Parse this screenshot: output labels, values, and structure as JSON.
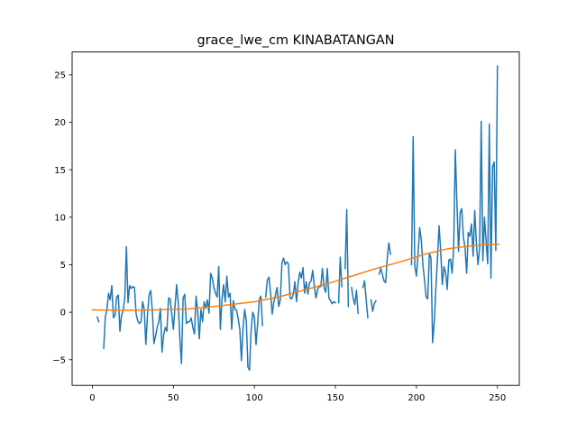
{
  "chart_data": {
    "type": "line",
    "title": "grace_lwe_cm KINABATANGAN",
    "xlabel": "",
    "ylabel": "",
    "xlim": [
      -12.5,
      263.5
    ],
    "ylim": [
      -7.7,
      27.4
    ],
    "x_ticks": [
      0,
      50,
      100,
      150,
      200,
      250
    ],
    "y_ticks": [
      -5,
      0,
      5,
      10,
      15,
      20,
      25
    ],
    "grid": false,
    "legend": "none",
    "series": [
      {
        "color": "#1f77b4",
        "points": [
          [
            3,
            -0.5
          ],
          [
            4,
            -1.0
          ],
          null,
          [
            7,
            -3.8
          ],
          [
            8,
            -0.5
          ],
          [
            9,
            0.3
          ],
          [
            10,
            2.0
          ],
          [
            11,
            1.3
          ],
          [
            12,
            2.8
          ],
          [
            13,
            -0.6
          ],
          [
            14,
            -0.3
          ],
          [
            15,
            1.6
          ],
          [
            16,
            1.8
          ],
          [
            17,
            -2.0
          ],
          [
            18,
            -0.3
          ],
          [
            19,
            0.2
          ],
          [
            20,
            1.5
          ],
          [
            21,
            6.9
          ],
          [
            22,
            1.0
          ],
          [
            23,
            2.8
          ],
          [
            24,
            2.5
          ],
          [
            25,
            2.7
          ],
          [
            26,
            2.6
          ],
          [
            27,
            -0.2
          ],
          [
            28,
            -0.9
          ],
          [
            29,
            -1.2
          ],
          [
            30,
            -1.0
          ],
          [
            31,
            1.1
          ],
          [
            32,
            0.3
          ],
          [
            33,
            -3.4
          ],
          [
            34,
            -0.3
          ],
          [
            35,
            1.8
          ],
          [
            36,
            2.3
          ],
          [
            37,
            0.2
          ],
          [
            38,
            -3.3
          ],
          [
            39,
            -2.5
          ],
          [
            40,
            -1.6
          ],
          [
            41,
            -1.0
          ],
          [
            42,
            0.4
          ],
          [
            43,
            -4.2
          ],
          [
            44,
            -2.4
          ],
          [
            45,
            -1.6
          ],
          [
            46,
            -2.0
          ],
          [
            47,
            1.5
          ],
          [
            48,
            1.4
          ],
          [
            49,
            -0.2
          ],
          [
            50,
            -1.8
          ],
          [
            51,
            0.6
          ],
          [
            52,
            2.9
          ],
          [
            53,
            1.0
          ],
          [
            54,
            -2.8
          ],
          [
            55,
            -5.4
          ],
          [
            56,
            1.5
          ],
          [
            57,
            1.9
          ],
          [
            58,
            -1.2
          ],
          [
            59,
            -1.0
          ],
          [
            60,
            -1.0
          ],
          [
            61,
            -0.6
          ],
          [
            62,
            -1.6
          ],
          [
            63,
            -2.3
          ],
          [
            64,
            1.7
          ],
          [
            65,
            0.1
          ],
          [
            66,
            -2.8
          ],
          [
            67,
            0.3
          ],
          [
            68,
            -1.0
          ],
          [
            69,
            1.1
          ],
          [
            70,
            0.4
          ],
          [
            71,
            1.3
          ],
          [
            72,
            -0.1
          ],
          [
            73,
            4.1
          ],
          [
            74,
            3.6
          ],
          [
            75,
            2.6
          ],
          [
            76,
            2.0
          ],
          [
            77,
            1.6
          ],
          [
            78,
            4.8
          ],
          [
            79,
            -1.8
          ],
          [
            80,
            1.4
          ],
          [
            81,
            2.9
          ],
          [
            82,
            1.1
          ],
          [
            83,
            3.8
          ],
          [
            84,
            1.6
          ],
          [
            85,
            2.0
          ],
          [
            86,
            -1.8
          ],
          [
            87,
            1.2
          ],
          [
            88,
            0.3
          ],
          [
            89,
            0.2
          ],
          [
            90,
            -0.7
          ],
          [
            91,
            -1.8
          ],
          [
            92,
            -5.1
          ],
          [
            93,
            -1.7
          ],
          [
            94,
            0.3
          ],
          [
            95,
            -0.9
          ],
          [
            96,
            -5.8
          ],
          [
            97,
            -6.1
          ],
          [
            98,
            -1.8
          ],
          [
            99,
            0.0
          ],
          [
            100,
            -0.5
          ],
          [
            101,
            -3.4
          ],
          [
            102,
            -1.2
          ],
          [
            103,
            1.3
          ],
          [
            104,
            1.7
          ],
          [
            105,
            -1.4
          ],
          null,
          [
            107,
            1.6
          ],
          [
            108,
            3.4
          ],
          [
            109,
            3.7
          ],
          [
            110,
            2.0
          ],
          [
            111,
            -0.2
          ],
          [
            112,
            1.1
          ],
          [
            113,
            1.8
          ],
          [
            114,
            2.6
          ],
          [
            115,
            0.6
          ],
          [
            116,
            1.3
          ],
          [
            117,
            5.2
          ],
          [
            118,
            5.7
          ],
          [
            119,
            5.0
          ],
          [
            120,
            5.3
          ],
          [
            121,
            5.1
          ],
          [
            122,
            1.5
          ],
          [
            123,
            1.4
          ],
          [
            124,
            1.9
          ],
          [
            125,
            3.2
          ],
          [
            126,
            1.1
          ],
          [
            127,
            3.1
          ],
          [
            128,
            4.2
          ],
          [
            129,
            3.6
          ],
          [
            130,
            4.7
          ],
          [
            131,
            2.0
          ],
          [
            132,
            3.2
          ],
          [
            133,
            1.9
          ],
          [
            134,
            3.1
          ],
          [
            135,
            3.3
          ],
          [
            136,
            4.4
          ],
          [
            137,
            2.7
          ],
          [
            138,
            1.5
          ],
          [
            139,
            2.4
          ],
          [
            140,
            2.7
          ],
          [
            141,
            2.7
          ],
          [
            142,
            4.6
          ],
          [
            143,
            2.6
          ],
          [
            144,
            2.1
          ],
          [
            145,
            4.6
          ],
          [
            146,
            1.5
          ],
          [
            147,
            1.2
          ],
          [
            148,
            0.9
          ],
          [
            149,
            1.1
          ],
          [
            150,
            1.0
          ],
          null,
          [
            152,
            1.0
          ],
          [
            153,
            5.8
          ],
          [
            154,
            2.7
          ],
          null,
          [
            156,
            4.6
          ],
          [
            157,
            10.8
          ],
          [
            158,
            0.6
          ],
          null,
          [
            160,
            2.6
          ],
          [
            161,
            1.4
          ],
          [
            162,
            0.8
          ],
          [
            163,
            2.3
          ],
          [
            164,
            -0.1
          ],
          null,
          [
            167,
            2.6
          ],
          [
            168,
            3.3
          ],
          [
            169,
            1.3
          ],
          [
            170,
            -0.6
          ],
          null,
          [
            172,
            1.3
          ],
          [
            173,
            0.1
          ],
          [
            174,
            0.9
          ],
          [
            175,
            1.2
          ],
          null,
          [
            177,
            4.0
          ],
          [
            178,
            4.6
          ],
          [
            179,
            4.0
          ],
          [
            180,
            3.3
          ],
          [
            181,
            3.1
          ],
          [
            182,
            5.7
          ],
          [
            183,
            7.3
          ],
          [
            184,
            6.1
          ],
          null,
          [
            197,
            5.0
          ],
          [
            198,
            18.5
          ],
          [
            199,
            4.9
          ],
          [
            200,
            3.8
          ],
          [
            201,
            6.1
          ],
          [
            202,
            8.9
          ],
          [
            203,
            7.6
          ],
          [
            204,
            5.0
          ],
          [
            205,
            3.4
          ],
          [
            206,
            1.6
          ],
          [
            207,
            1.4
          ],
          [
            208,
            6.2
          ],
          [
            209,
            5.7
          ],
          [
            210,
            -3.2
          ],
          [
            211,
            -1.1
          ],
          [
            212,
            2.5
          ],
          [
            213,
            5.7
          ],
          [
            214,
            9.1
          ],
          [
            215,
            6.4
          ],
          [
            216,
            2.9
          ],
          [
            217,
            4.8
          ],
          [
            218,
            4.2
          ],
          [
            219,
            2.4
          ],
          [
            220,
            5.5
          ],
          [
            221,
            5.6
          ],
          [
            222,
            4.1
          ],
          [
            223,
            6.8
          ],
          [
            224,
            17.1
          ],
          [
            225,
            11.5
          ],
          [
            226,
            6.4
          ],
          [
            227,
            10.5
          ],
          [
            228,
            10.9
          ],
          [
            229,
            7.9
          ],
          [
            230,
            6.8
          ],
          [
            231,
            4.1
          ],
          [
            232,
            8.4
          ],
          [
            233,
            8.0
          ],
          [
            234,
            9.3
          ],
          [
            235,
            5.9
          ],
          [
            236,
            10.7
          ],
          [
            237,
            7.3
          ],
          [
            238,
            5.0
          ],
          [
            239,
            6.7
          ],
          [
            240,
            20.1
          ],
          [
            241,
            5.4
          ],
          [
            242,
            10.0
          ],
          [
            243,
            7.5
          ],
          [
            244,
            5.1
          ],
          [
            245,
            19.8
          ],
          [
            246,
            3.6
          ],
          [
            247,
            15.3
          ],
          [
            248,
            15.8
          ],
          [
            249,
            6.5
          ],
          [
            250,
            25.9
          ]
        ]
      },
      {
        "color": "#ff7f0e",
        "points": [
          [
            0,
            0.25
          ],
          [
            20,
            0.2
          ],
          [
            40,
            0.25
          ],
          [
            60,
            0.35
          ],
          [
            80,
            0.7
          ],
          [
            100,
            1.1
          ],
          [
            115,
            1.6
          ],
          [
            130,
            2.3
          ],
          [
            145,
            3.0
          ],
          [
            160,
            3.8
          ],
          [
            175,
            4.6
          ],
          [
            190,
            5.3
          ],
          [
            205,
            6.1
          ],
          [
            220,
            6.7
          ],
          [
            235,
            7.0
          ],
          [
            245,
            7.15
          ],
          [
            251,
            7.15
          ]
        ]
      }
    ]
  }
}
